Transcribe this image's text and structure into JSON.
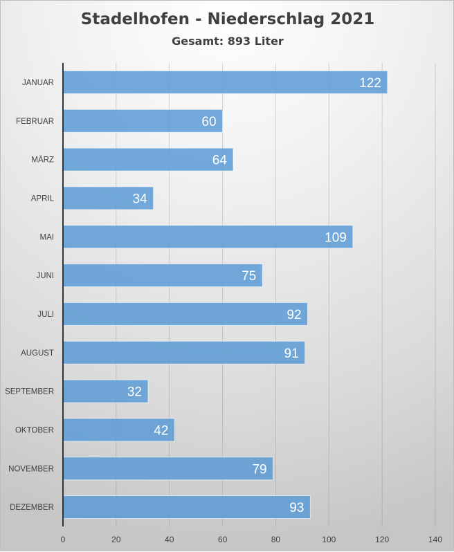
{
  "chart_data": {
    "type": "bar",
    "orientation": "horizontal",
    "title": "Stadelhofen - Niederschlag 2021",
    "subtitle": "Gesamt: 893 Liter",
    "categories": [
      "JANUAR",
      "FEBRUAR",
      "MÄRZ",
      "APRIL",
      "MAI",
      "JUNI",
      "JULI",
      "AUGUST",
      "SEPTEMBER",
      "OKTOBER",
      "NOVEMBER",
      "DEZEMBER"
    ],
    "values": [
      122,
      60,
      64,
      34,
      109,
      75,
      92,
      91,
      32,
      42,
      79,
      93
    ],
    "xlim": [
      0,
      140
    ],
    "xticks": [
      0,
      20,
      40,
      60,
      80,
      100,
      120,
      140
    ],
    "xlabel": "",
    "ylabel": "",
    "grid": true,
    "data_labels": "inside-end",
    "bar_color": "#5b9bd5",
    "legend": "none"
  }
}
